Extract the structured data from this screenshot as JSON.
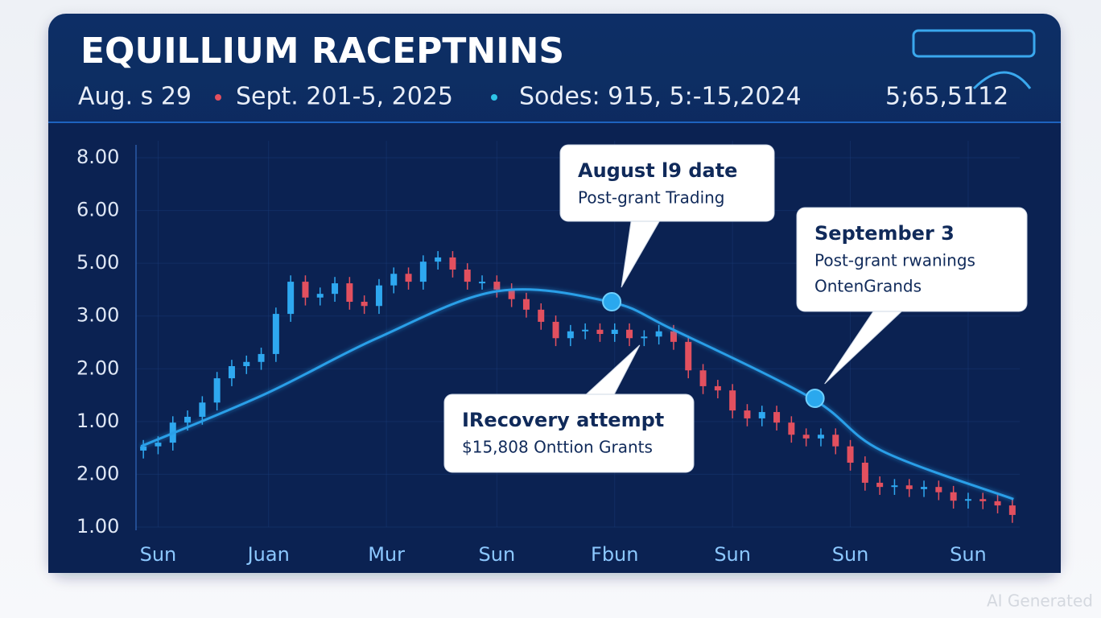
{
  "chart_data": {
    "type": "candlestick",
    "title": "EQUILLIUM RACEPTNINS",
    "subtitle": [
      "Aug. s 29",
      "Sept. 201-5, 2025",
      "Sodes: 915, 5:-15,2024"
    ],
    "header_value": "5;65,5112",
    "watermark": "AI Generated",
    "up_color": "#2ea8f0",
    "down_color": "#e2505f",
    "grid": true,
    "xlim": [
      -0.5,
      59.5
    ],
    "xticks": [
      {
        "value": 1,
        "label": "Sun"
      },
      {
        "value": 8.5,
        "label": "Juan"
      },
      {
        "value": 16.5,
        "label": "Mur"
      },
      {
        "value": 24,
        "label": "Sun"
      },
      {
        "value": 32,
        "label": "Fbun"
      },
      {
        "value": 40,
        "label": "Sun"
      },
      {
        "value": 48,
        "label": "Sun"
      },
      {
        "value": 56,
        "label": "Sun"
      }
    ],
    "ylim": [
      1,
      8
    ],
    "yticks": [
      {
        "value": 8,
        "label": "8.00"
      },
      {
        "value": 7,
        "label": "6.00"
      },
      {
        "value": 6,
        "label": "5.00"
      },
      {
        "value": 5,
        "label": "3.00"
      },
      {
        "value": 4,
        "label": "2.00"
      },
      {
        "value": 3,
        "label": "1.00"
      },
      {
        "value": 2,
        "label": "2.00"
      },
      {
        "value": 1,
        "label": "1.00"
      }
    ],
    "open": [
      2.45,
      2.53,
      2.6,
      2.98,
      3.09,
      3.36,
      3.82,
      4.05,
      4.13,
      4.28,
      5.04,
      5.65,
      5.35,
      5.42,
      5.62,
      5.27,
      5.19,
      5.58,
      5.8,
      5.65,
      6.03,
      6.11,
      5.88,
      5.65,
      5.65,
      5.5,
      5.32,
      5.12,
      4.89,
      4.58,
      4.71,
      4.74,
      4.66,
      4.74,
      4.58,
      4.61,
      4.71,
      4.51,
      3.97,
      3.67,
      3.59,
      3.21,
      3.06,
      3.18,
      2.98,
      2.75,
      2.68,
      2.75,
      2.53,
      2.22,
      1.84,
      1.76,
      1.79,
      1.72,
      1.76,
      1.66,
      1.5,
      1.53,
      1.49,
      1.41
    ],
    "high": [
      2.65,
      2.72,
      3.1,
      3.21,
      3.48,
      3.94,
      4.17,
      4.25,
      4.4,
      5.16,
      5.77,
      5.77,
      5.54,
      5.74,
      5.74,
      5.39,
      5.7,
      5.92,
      5.92,
      6.15,
      6.23,
      6.23,
      6.0,
      5.77,
      5.77,
      5.62,
      5.44,
      5.24,
      5.01,
      4.83,
      4.86,
      4.86,
      4.86,
      4.86,
      4.73,
      4.83,
      4.83,
      4.63,
      4.09,
      3.79,
      3.71,
      3.33,
      3.3,
      3.3,
      3.1,
      2.87,
      2.87,
      2.87,
      2.65,
      2.34,
      1.96,
      1.91,
      1.91,
      1.88,
      1.88,
      1.78,
      1.65,
      1.65,
      1.61,
      1.53
    ],
    "low": [
      2.3,
      2.38,
      2.45,
      2.83,
      2.94,
      3.21,
      3.67,
      3.9,
      3.98,
      4.13,
      4.89,
      5.2,
      5.2,
      5.27,
      5.12,
      5.04,
      5.04,
      5.43,
      5.5,
      5.5,
      5.88,
      5.73,
      5.5,
      5.5,
      5.35,
      5.17,
      4.97,
      4.74,
      4.43,
      4.43,
      4.56,
      4.51,
      4.51,
      4.43,
      4.43,
      4.46,
      4.36,
      3.82,
      3.52,
      3.44,
      3.06,
      2.91,
      2.91,
      2.83,
      2.6,
      2.53,
      2.53,
      2.38,
      2.07,
      1.69,
      1.61,
      1.61,
      1.57,
      1.57,
      1.51,
      1.35,
      1.35,
      1.34,
      1.26,
      1.08
    ],
    "close": [
      2.53,
      2.6,
      2.98,
      3.09,
      3.36,
      3.82,
      4.05,
      4.13,
      4.28,
      5.04,
      5.65,
      5.35,
      5.42,
      5.62,
      5.27,
      5.19,
      5.58,
      5.8,
      5.65,
      6.03,
      6.11,
      5.88,
      5.65,
      5.65,
      5.5,
      5.32,
      5.12,
      4.89,
      4.58,
      4.71,
      4.74,
      4.66,
      4.74,
      4.58,
      4.61,
      4.71,
      4.51,
      3.97,
      3.67,
      3.59,
      3.21,
      3.06,
      3.18,
      2.98,
      2.75,
      2.68,
      2.75,
      2.53,
      2.22,
      1.84,
      1.76,
      1.79,
      1.72,
      1.76,
      1.66,
      1.5,
      1.53,
      1.49,
      1.41,
      1.23
    ],
    "trend": {
      "color": "#2a9fe8",
      "x": [
        -0.16,
        8.26,
        15.87,
        24.02,
        31.63,
        35.98,
        45.38,
        50.11,
        59.08
      ],
      "values": [
        2.53,
        3.52,
        4.58,
        5.47,
        5.27,
        4.74,
        3.44,
        2.45,
        1.53
      ]
    },
    "annotations": [
      {
        "title": "August l9 date",
        "text": [
          "Post-grant Trading"
        ],
        "x": 31.8,
        "y": 5.27,
        "marker": true
      },
      {
        "title": "September 3",
        "text": [
          "Post-grant rwanings",
          "OntenGrands"
        ],
        "x": 45.6,
        "y": 3.44,
        "marker": true
      },
      {
        "title": "IRecovery attempt",
        "text": [
          "$15,808 Onttion Grants"
        ],
        "x": 33.7,
        "y": 4.51,
        "marker": false
      }
    ]
  }
}
